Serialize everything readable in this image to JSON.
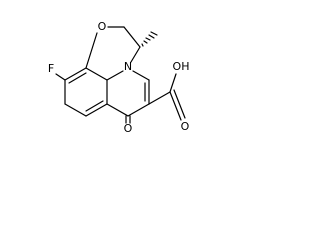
{
  "atoms": [
    {
      "label": "O"
    },
    {
      "label": "N"
    },
    {
      "label": "F"
    },
    {
      "label": "O"
    },
    {
      "label": "OH"
    },
    {
      "label": "O"
    }
  ]
}
